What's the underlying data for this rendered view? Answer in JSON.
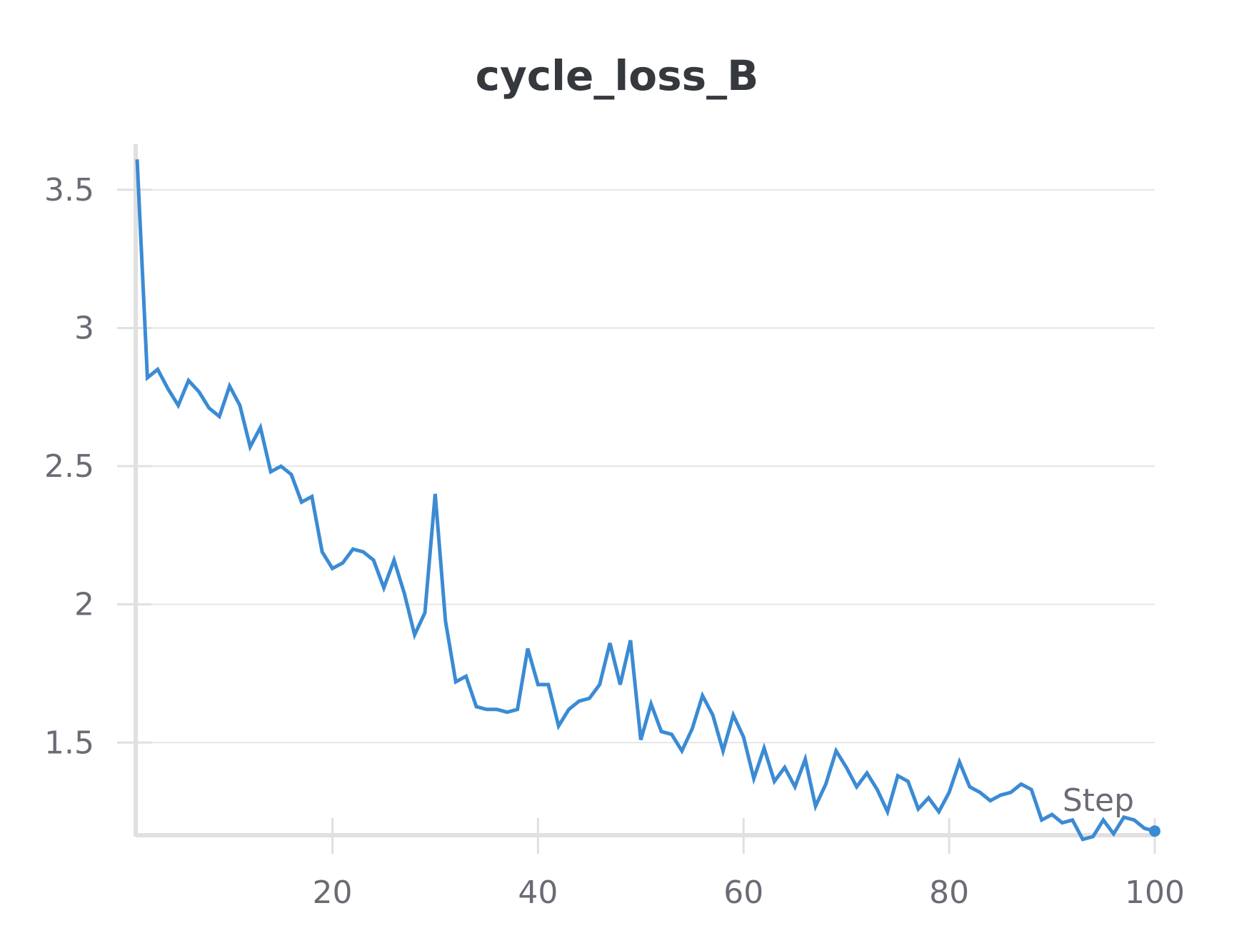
{
  "chart_data": {
    "type": "line",
    "title": "cycle_loss_B",
    "xlabel": "Step",
    "ylabel": "",
    "xlim": [
      1,
      100
    ],
    "ylim": [
      1.165,
      3.67
    ],
    "x_ticks": [
      20,
      40,
      60,
      80,
      100
    ],
    "x_tick_labels": [
      "20",
      "40",
      "60",
      "80",
      "100"
    ],
    "y_ticks": [
      1.5,
      2,
      2.5,
      3,
      3.5
    ],
    "y_tick_labels": [
      "1.5",
      "2",
      "2.5",
      "3",
      "3.5"
    ],
    "grid": "horizontal",
    "colors": {
      "line": "#3b8bd4",
      "grid": "#e6e6e6",
      "axis": "#e0e0e0",
      "text": "#6b6b76",
      "title": "#35383d"
    },
    "series": [
      {
        "color": "#3b8bd4",
        "x": [
          1,
          2,
          3,
          4,
          5,
          6,
          7,
          8,
          9,
          10,
          11,
          12,
          13,
          14,
          15,
          16,
          17,
          18,
          19,
          20,
          21,
          22,
          23,
          24,
          25,
          26,
          27,
          28,
          29,
          30,
          31,
          32,
          33,
          34,
          35,
          36,
          37,
          38,
          39,
          40,
          41,
          42,
          43,
          44,
          45,
          46,
          47,
          48,
          49,
          50,
          51,
          52,
          53,
          54,
          55,
          56,
          57,
          58,
          59,
          60,
          61,
          62,
          63,
          64,
          65,
          66,
          67,
          68,
          69,
          70,
          71,
          72,
          73,
          74,
          75,
          76,
          77,
          78,
          79,
          80,
          81,
          82,
          83,
          84,
          85,
          86,
          87,
          88,
          89,
          90,
          91,
          92,
          93,
          94,
          95,
          96,
          97,
          98,
          99,
          100
        ],
        "values": [
          3.61,
          2.82,
          2.85,
          2.78,
          2.72,
          2.81,
          2.77,
          2.71,
          2.68,
          2.79,
          2.72,
          2.57,
          2.64,
          2.48,
          2.5,
          2.47,
          2.37,
          2.39,
          2.19,
          2.13,
          2.15,
          2.2,
          2.19,
          2.16,
          2.06,
          2.16,
          2.04,
          1.89,
          1.97,
          2.4,
          1.94,
          1.72,
          1.74,
          1.63,
          1.62,
          1.62,
          1.61,
          1.62,
          1.84,
          1.71,
          1.71,
          1.56,
          1.62,
          1.65,
          1.66,
          1.71,
          1.86,
          1.71,
          1.87,
          1.51,
          1.64,
          1.54,
          1.53,
          1.47,
          1.55,
          1.67,
          1.6,
          1.47,
          1.6,
          1.52,
          1.37,
          1.48,
          1.36,
          1.41,
          1.34,
          1.44,
          1.27,
          1.35,
          1.47,
          1.41,
          1.34,
          1.39,
          1.33,
          1.25,
          1.38,
          1.36,
          1.26,
          1.3,
          1.25,
          1.32,
          1.43,
          1.34,
          1.32,
          1.29,
          1.31,
          1.32,
          1.35,
          1.33,
          1.22,
          1.24,
          1.21,
          1.22,
          1.15,
          1.16,
          1.22,
          1.17,
          1.23,
          1.22,
          1.19,
          1.18
        ]
      }
    ]
  }
}
